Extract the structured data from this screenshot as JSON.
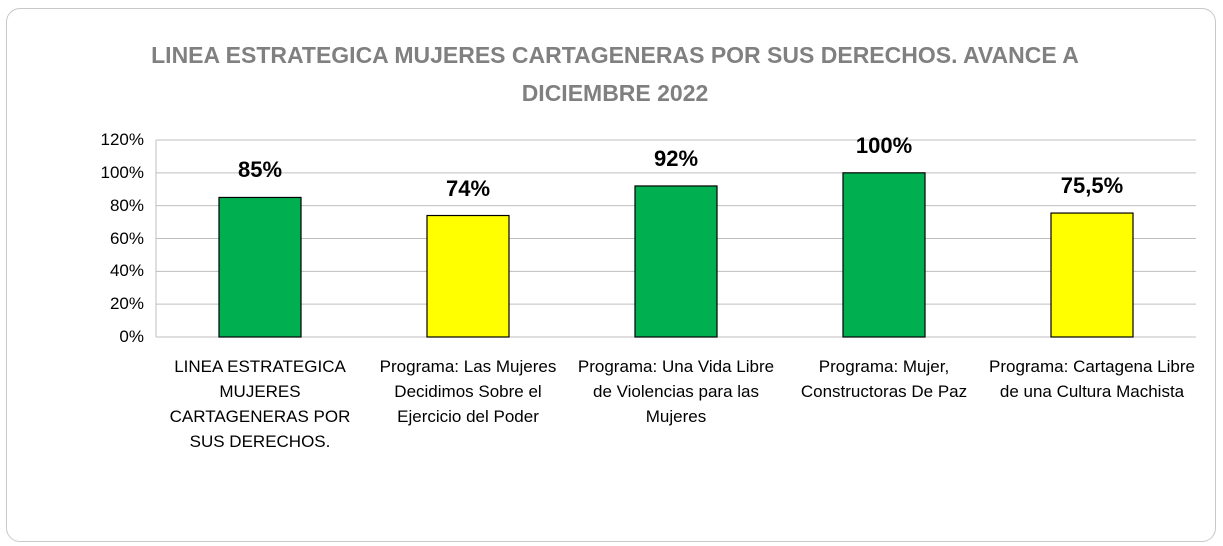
{
  "chart_data": {
    "type": "bar",
    "title": "LINEA ESTRATEGICA MUJERES CARTAGENERAS POR SUS DERECHOS. AVANCE A DICIEMBRE  2022",
    "categories": [
      "LINEA ESTRATEGICA MUJERES CARTAGENERAS POR SUS DERECHOS.",
      "Programa: Las Mujeres Decidimos Sobre el Ejercicio del Poder",
      "Programa: Una Vida Libre de Violencias para las Mujeres",
      "Programa: Mujer, Constructoras De Paz",
      "Programa: Cartagena Libre de una Cultura Machista"
    ],
    "values": [
      85,
      74,
      92,
      100,
      75.5
    ],
    "value_labels": [
      "85%",
      "74%",
      "92%",
      "100%",
      "75,5%"
    ],
    "colors": [
      "#00b050",
      "#ffff00",
      "#00b050",
      "#00b050",
      "#ffff00"
    ],
    "ylim": [
      0,
      120
    ],
    "yticks": [
      {
        "value": 0,
        "label": "0%"
      },
      {
        "value": 20,
        "label": "20%"
      },
      {
        "value": 40,
        "label": "40%"
      },
      {
        "value": 60,
        "label": "60%"
      },
      {
        "value": 80,
        "label": "80%"
      },
      {
        "value": 100,
        "label": "100%"
      },
      {
        "value": 120,
        "label": "120%"
      }
    ],
    "grid": true
  }
}
